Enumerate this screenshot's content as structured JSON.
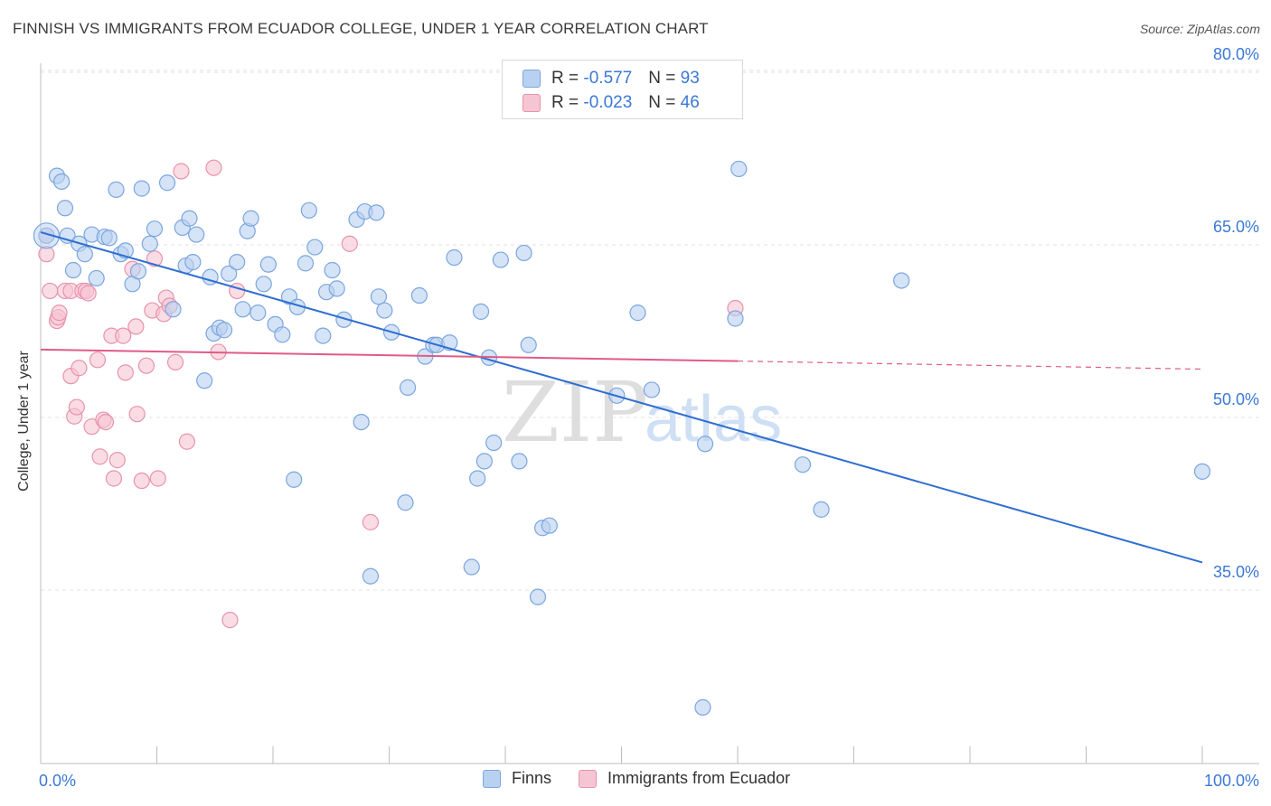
{
  "title": "FINNISH VS IMMIGRANTS FROM ECUADOR COLLEGE, UNDER 1 YEAR CORRELATION CHART",
  "source": "Source: ZipAtlas.com",
  "watermark": {
    "zip": "ZIP",
    "atlas": "atlas"
  },
  "legend_top": [
    {
      "r_label": "R =",
      "r_value": "-0.577",
      "n_label": "N =",
      "n_value": "93"
    },
    {
      "r_label": "R =",
      "r_value": "-0.023",
      "n_label": "N =",
      "n_value": "46"
    }
  ],
  "colors": {
    "finns_fill": "#b9d1f0",
    "finns_stroke": "#7aa6e0",
    "finns_line": "#2f6fd1",
    "ecuador_fill": "#f6c5d4",
    "ecuador_stroke": "#e893ad",
    "ecuador_line": "#e05b86",
    "axis_text": "#3b78d6",
    "grid": "#e0e0e0"
  },
  "chart_data": {
    "type": "scatter",
    "title": "FINNISH VS IMMIGRANTS FROM ECUADOR COLLEGE, UNDER 1 YEAR CORRELATION CHART",
    "xlabel": "",
    "ylabel": "College, Under 1 year",
    "xlim": [
      0,
      100
    ],
    "ylim": [
      20,
      83
    ],
    "x_tick_labels": [
      "0.0%",
      "100.0%"
    ],
    "y_ticks": [
      35,
      50,
      65,
      80
    ],
    "y_tick_labels": [
      "35.0%",
      "50.0%",
      "65.0%",
      "80.0%"
    ],
    "grid": true,
    "legend_position": "bottom",
    "series": [
      {
        "name": "Finns",
        "points": [
          [
            0.5,
            65.8
          ],
          [
            1.4,
            71
          ],
          [
            1.8,
            70.5
          ],
          [
            2.1,
            68.2
          ],
          [
            2.3,
            65.8
          ],
          [
            2.8,
            62.8
          ],
          [
            3.3,
            65.1
          ],
          [
            3.8,
            64.2
          ],
          [
            4.4,
            65.9
          ],
          [
            4.8,
            62.1
          ],
          [
            5.5,
            65.7
          ],
          [
            5.9,
            65.6
          ],
          [
            6.5,
            69.8
          ],
          [
            6.9,
            64.2
          ],
          [
            7.3,
            64.5
          ],
          [
            7.9,
            61.6
          ],
          [
            8.4,
            62.7
          ],
          [
            8.7,
            69.9
          ],
          [
            9.4,
            65.1
          ],
          [
            9.8,
            66.4
          ],
          [
            10.9,
            70.4
          ],
          [
            11.4,
            59.4
          ],
          [
            12.2,
            66.5
          ],
          [
            12.5,
            63.2
          ],
          [
            12.8,
            67.3
          ],
          [
            13.1,
            63.5
          ],
          [
            13.4,
            65.9
          ],
          [
            14.1,
            53.2
          ],
          [
            14.6,
            62.2
          ],
          [
            14.9,
            57.3
          ],
          [
            15.4,
            57.8
          ],
          [
            15.8,
            57.6
          ],
          [
            16.2,
            62.5
          ],
          [
            16.9,
            63.5
          ],
          [
            17.4,
            59.4
          ],
          [
            17.8,
            66.2
          ],
          [
            18.1,
            67.3
          ],
          [
            18.7,
            59.1
          ],
          [
            19.2,
            61.6
          ],
          [
            19.6,
            63.3
          ],
          [
            20.2,
            58.1
          ],
          [
            20.8,
            57.2
          ],
          [
            21.4,
            60.5
          ],
          [
            22.1,
            59.6
          ],
          [
            21.8,
            44.6
          ],
          [
            22.8,
            63.4
          ],
          [
            23.1,
            68
          ],
          [
            23.6,
            64.8
          ],
          [
            24.3,
            57.1
          ],
          [
            24.6,
            60.9
          ],
          [
            25.1,
            62.8
          ],
          [
            25.5,
            61.2
          ],
          [
            26.1,
            58.5
          ],
          [
            27.2,
            67.2
          ],
          [
            27.6,
            49.6
          ],
          [
            27.9,
            67.9
          ],
          [
            28.4,
            36.2
          ],
          [
            28.9,
            67.8
          ],
          [
            29.1,
            60.5
          ],
          [
            29.6,
            59.3
          ],
          [
            30.2,
            57.4
          ],
          [
            31.6,
            52.6
          ],
          [
            31.4,
            42.6
          ],
          [
            32.6,
            60.6
          ],
          [
            33.1,
            55.3
          ],
          [
            33.8,
            56.3
          ],
          [
            34.1,
            56.3
          ],
          [
            35.2,
            56.5
          ],
          [
            35.6,
            63.9
          ],
          [
            37.1,
            37
          ],
          [
            37.6,
            44.7
          ],
          [
            37.9,
            59.2
          ],
          [
            38.2,
            46.2
          ],
          [
            38.6,
            55.2
          ],
          [
            39,
            47.8
          ],
          [
            39.6,
            63.7
          ],
          [
            41.2,
            46.2
          ],
          [
            41.6,
            64.3
          ],
          [
            42,
            56.3
          ],
          [
            42.8,
            34.4
          ],
          [
            43.2,
            40.4
          ],
          [
            43.8,
            40.6
          ],
          [
            49.6,
            51.9
          ],
          [
            51.4,
            59.1
          ],
          [
            52.6,
            52.4
          ],
          [
            57.2,
            47.7
          ],
          [
            59.8,
            58.6
          ],
          [
            60.1,
            71.6
          ],
          [
            65.6,
            45.9
          ],
          [
            67.2,
            42
          ],
          [
            74.1,
            61.9
          ],
          [
            100,
            45.3
          ],
          [
            57,
            24.8
          ]
        ]
      },
      {
        "name": "Immigrants from Ecuador",
        "points": [
          [
            0.5,
            65.8
          ],
          [
            0.5,
            64.2
          ],
          [
            0.8,
            61
          ],
          [
            1.4,
            58.4
          ],
          [
            1.5,
            58.7
          ],
          [
            1.6,
            59.1
          ],
          [
            2.1,
            61
          ],
          [
            2.6,
            61
          ],
          [
            2.6,
            53.6
          ],
          [
            2.9,
            50.1
          ],
          [
            3.1,
            50.9
          ],
          [
            3.3,
            54.3
          ],
          [
            3.6,
            61
          ],
          [
            3.9,
            61
          ],
          [
            4.1,
            60.8
          ],
          [
            4.4,
            49.2
          ],
          [
            4.9,
            55
          ],
          [
            5.1,
            46.6
          ],
          [
            5.4,
            49.8
          ],
          [
            5.6,
            49.6
          ],
          [
            6.1,
            57.1
          ],
          [
            6.3,
            44.7
          ],
          [
            6.6,
            46.3
          ],
          [
            7.1,
            57.1
          ],
          [
            7.3,
            53.9
          ],
          [
            7.9,
            62.9
          ],
          [
            8.2,
            57.9
          ],
          [
            8.3,
            50.3
          ],
          [
            8.7,
            44.5
          ],
          [
            9.1,
            54.5
          ],
          [
            9.6,
            59.3
          ],
          [
            9.8,
            63.8
          ],
          [
            10.1,
            44.7
          ],
          [
            10.6,
            59
          ],
          [
            10.8,
            60.4
          ],
          [
            11.1,
            59.7
          ],
          [
            11.6,
            54.8
          ],
          [
            12.1,
            71.4
          ],
          [
            12.6,
            47.9
          ],
          [
            14.9,
            71.7
          ],
          [
            15.3,
            55.7
          ],
          [
            16.3,
            32.4
          ],
          [
            16.9,
            61
          ],
          [
            26.6,
            65.1
          ],
          [
            28.4,
            40.9
          ],
          [
            59.8,
            59.5
          ]
        ]
      }
    ],
    "trend_lines": [
      {
        "series": "Finns",
        "x": [
          0,
          100
        ],
        "y": [
          66.1,
          37.4
        ],
        "style": "solid"
      },
      {
        "series": "Immigrants from Ecuador",
        "x": [
          0,
          60
        ],
        "y": [
          55.9,
          54.9
        ],
        "style": "solid"
      },
      {
        "series": "Immigrants from Ecuador",
        "x": [
          60,
          100
        ],
        "y": [
          54.9,
          54.2
        ],
        "style": "dashed"
      }
    ]
  }
}
